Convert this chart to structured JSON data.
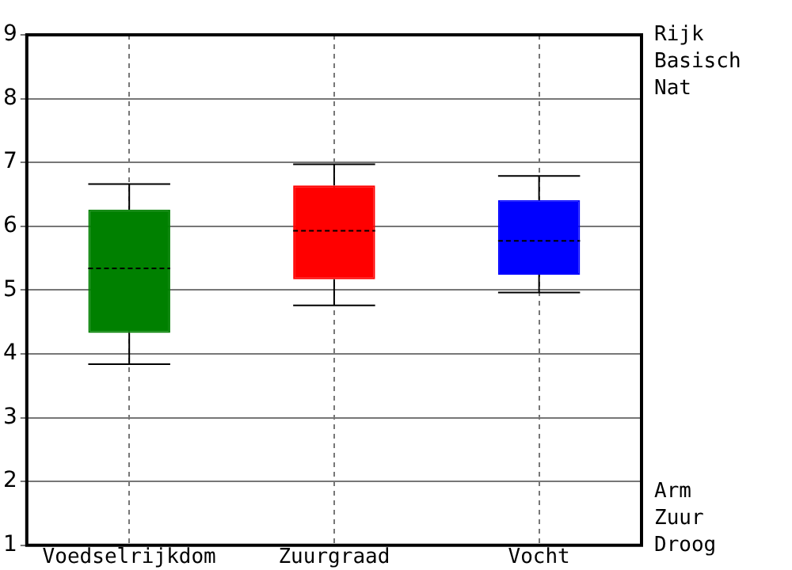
{
  "chart_data": {
    "type": "box",
    "categories": [
      "Voedselrijkdom",
      "Zuurgraad",
      "Vocht"
    ],
    "series": [
      {
        "colors": [
          "#008000",
          "#ff0000",
          "#0000ff"
        ],
        "boxes": [
          {
            "low": 3.84,
            "q1": 4.33,
            "median": 5.34,
            "q3": 6.26,
            "high": 6.66
          },
          {
            "low": 4.76,
            "q1": 5.17,
            "median": 5.93,
            "q3": 6.64,
            "high": 6.97
          },
          {
            "low": 4.96,
            "q1": 5.24,
            "median": 5.77,
            "q3": 6.41,
            "high": 6.79
          }
        ]
      }
    ],
    "ylim": [
      1,
      9
    ],
    "yticks": [
      1,
      2,
      3,
      4,
      5,
      6,
      7,
      8,
      9
    ],
    "grid": true,
    "legend": false,
    "annotations": [
      "Rijk\nBasisch\nNat",
      "Arm\nZuur\nDroog"
    ]
  }
}
